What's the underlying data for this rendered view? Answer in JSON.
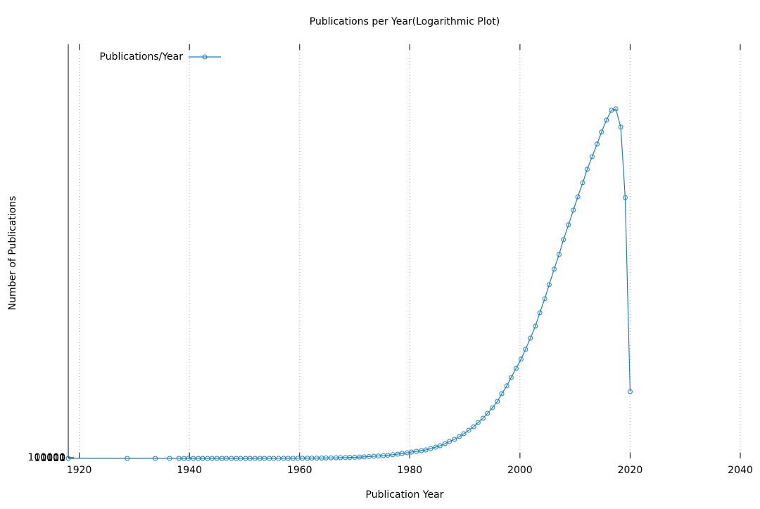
{
  "chart_data": {
    "type": "line",
    "title": "Publications per Year(Logarithmic Plot)",
    "x_label": "Publication Year",
    "y_label": "Number of Publications",
    "x": [
      1918,
      1928.7,
      1933.8,
      1936.4,
      1938.1,
      1939.0,
      1939.8,
      1940.7,
      1941.6,
      1942.4,
      1943.3,
      1944.1,
      1945.0,
      1945.9,
      1946.7,
      1947.6,
      1948.5,
      1949.3,
      1950.2,
      1951.0,
      1951.9,
      1952.8,
      1953.6,
      1954.5,
      1955.3,
      1956.2,
      1957.1,
      1957.9,
      1958.8,
      1959.7,
      1960.5,
      1961.4,
      1962.2,
      1963.1,
      1964.0,
      1964.8,
      1965.7,
      1966.6,
      1967.4,
      1968.3,
      1969.1,
      1970.0,
      1970.9,
      1971.7,
      1972.6,
      1973.5,
      1974.3,
      1975.2,
      1976.0,
      1976.9,
      1977.8,
      1978.6,
      1979.5,
      1980.3,
      1981.2,
      1982.1,
      1982.9,
      1983.8,
      1984.7,
      1985.5,
      1986.4,
      1987.2,
      1988.1,
      1989.0,
      1989.8,
      1990.7,
      1991.6,
      1992.4,
      1993.3,
      1994.1,
      1995.0,
      1995.9,
      1996.7,
      1997.6,
      1998.4,
      1999.3,
      2000.2,
      2001.0,
      2001.9,
      2002.8,
      2003.6,
      2004.5,
      2005.3,
      2006.2,
      2007.1,
      2007.9,
      2008.8,
      2009.7,
      2010.5,
      2011.4,
      2012.2,
      2013.1,
      2014.0,
      2014.8,
      2015.7,
      2016.6,
      2017.4,
      2018.3,
      2019.1,
      2020.0
    ],
    "series": [
      {
        "name": "Publications/Year",
        "color": "#1a7fbf",
        "values": [
          1,
          2,
          5,
          20,
          70,
          90,
          120,
          150,
          200,
          250,
          320,
          400,
          500,
          650,
          800,
          1000,
          1200,
          1500,
          1800,
          2200,
          2700,
          3300,
          4000,
          5000,
          6000,
          8000,
          10000,
          13000,
          16000,
          20000,
          24000,
          29000,
          35000,
          42000,
          50000,
          60000,
          72000,
          85000,
          100000,
          120000,
          140000,
          160000,
          190000,
          220000,
          260000,
          300000,
          350000,
          400000,
          460000,
          530000,
          610000,
          710000,
          820000,
          920000,
          1020000,
          1120000,
          1220000,
          1430000,
          1630000,
          1830000,
          2140000,
          2450000,
          2750000,
          3160000,
          3570000,
          4080000,
          4590000,
          5200000,
          5810000,
          6520000,
          7340000,
          8250000,
          9370000,
          10500000,
          11720000,
          13040000,
          14370000,
          15790000,
          17420000,
          19160000,
          21090000,
          23130000,
          25170000,
          27410000,
          29550000,
          31690000,
          33830000,
          35970000,
          37900000,
          39940000,
          41880000,
          43710000,
          45550000,
          47280000,
          49010000,
          50440000,
          50640000,
          48000000,
          37800000,
          9680000
        ]
      }
    ],
    "xlim": [
      1918,
      2040
    ],
    "xticks": [
      1920,
      1940,
      1960,
      1980,
      2000,
      2020,
      2040
    ],
    "ylim": [
      1,
      60000000
    ],
    "yticks": [
      1,
      10,
      100,
      1000,
      10000,
      100000
    ],
    "grid": true,
    "legend": "upper-left"
  }
}
